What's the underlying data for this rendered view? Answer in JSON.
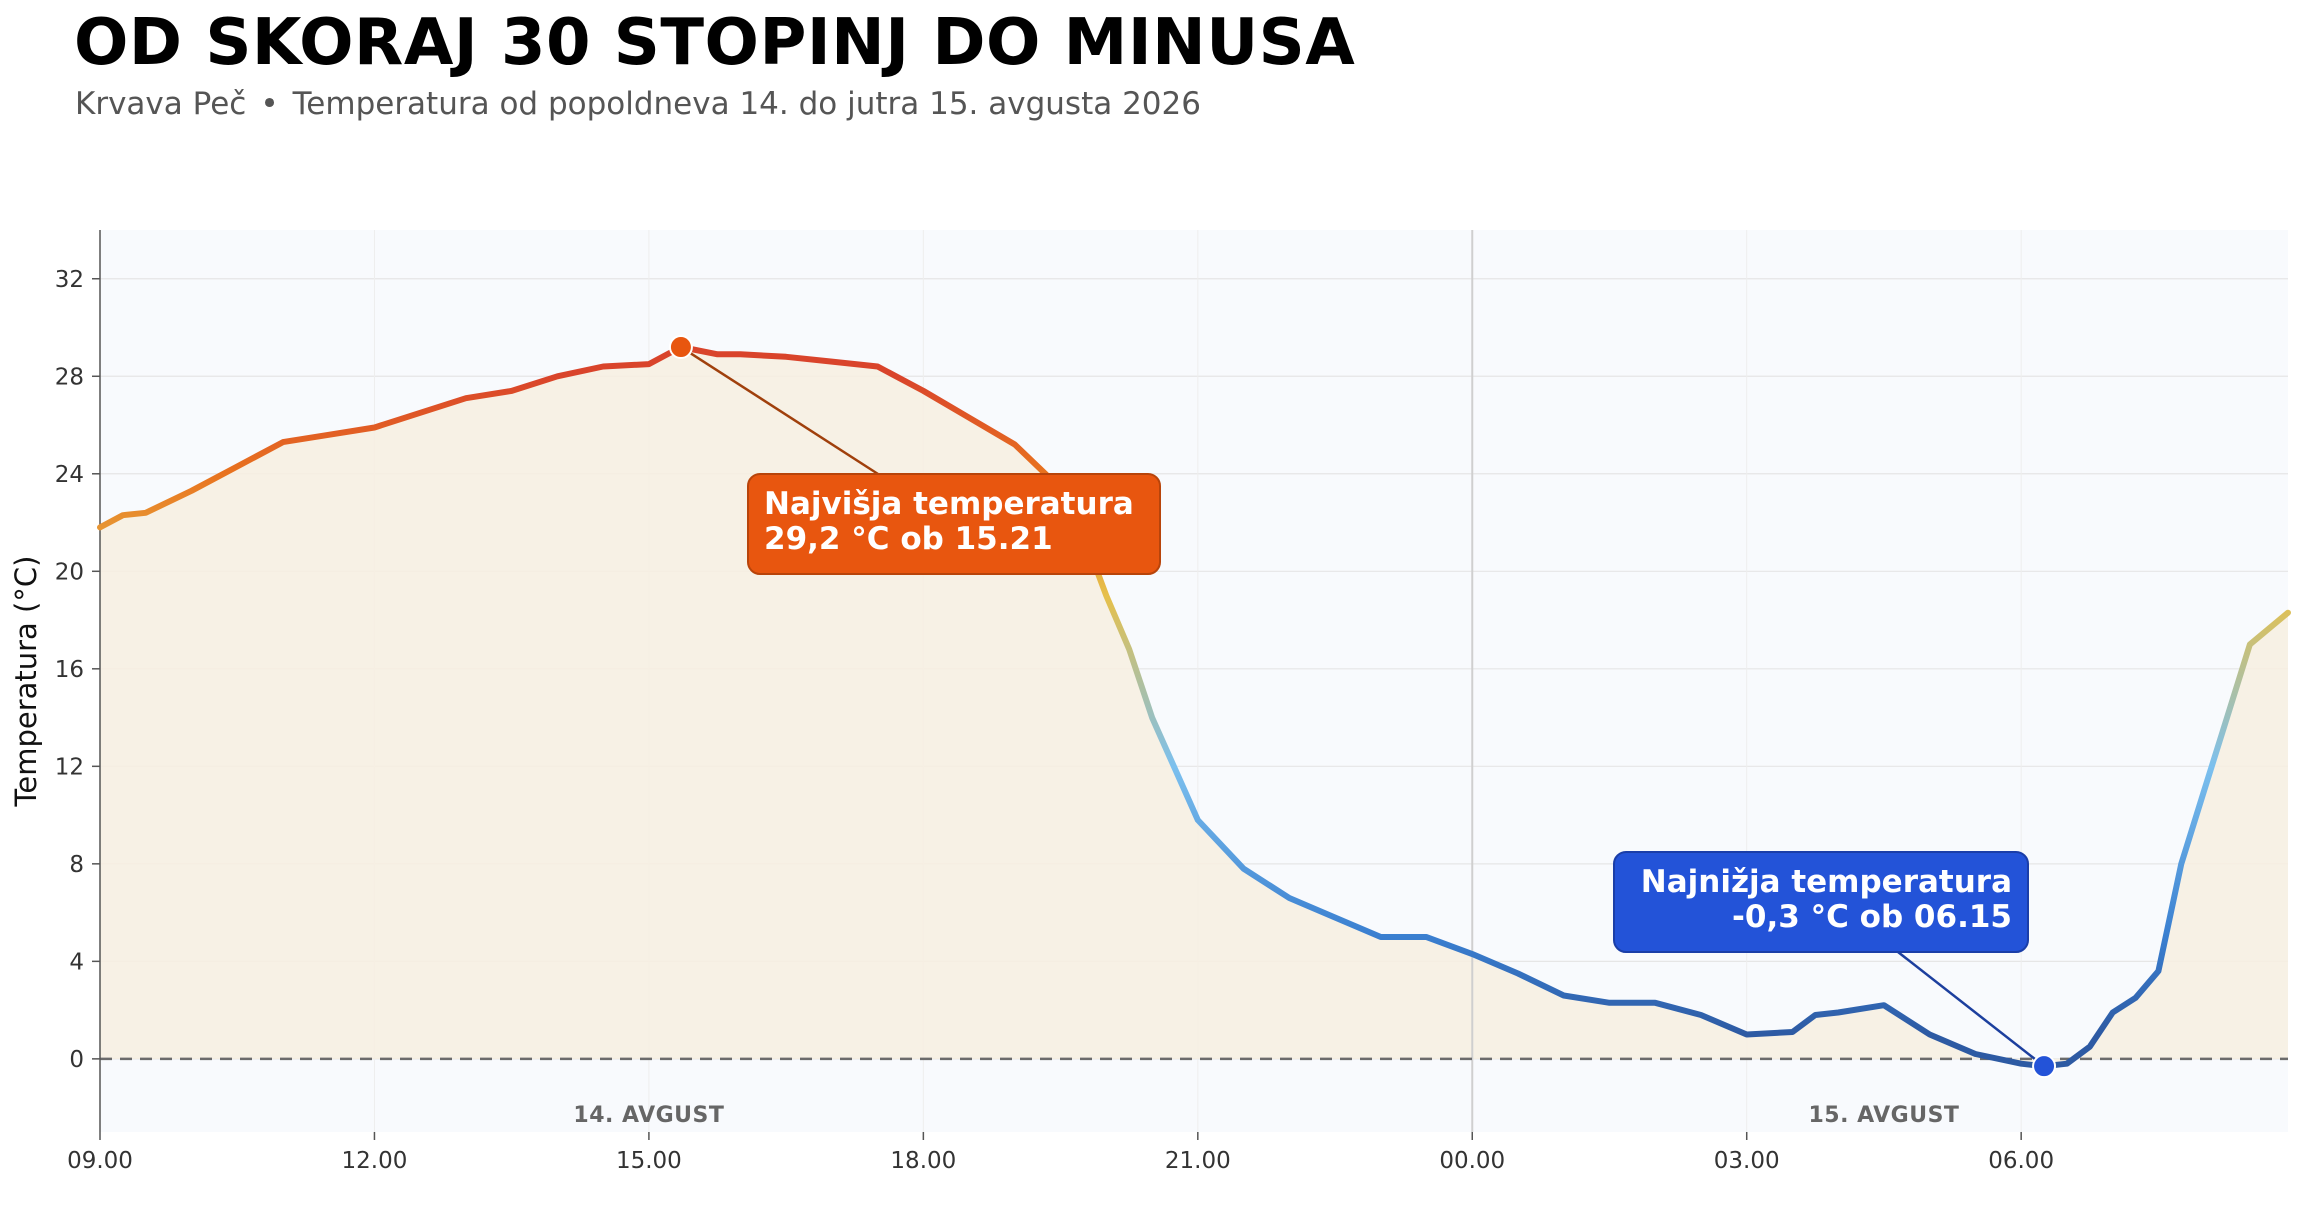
{
  "header": {
    "title": "OD SKORAJ 30 STOPINJ DO MINUSA",
    "location": "Krvava Peč",
    "separator": "•",
    "description": "Temperatura od popoldneva 14. do jutra 15. avgusta 2026"
  },
  "chart_data": {
    "type": "line",
    "title": "OD SKORAJ 30 STOPINJ DO MINUSA",
    "xlabel": "",
    "ylabel": "Temperatura (°C)",
    "x_unit": "time of day (14.–15. avgust 2026)",
    "ylim": [
      -3,
      34
    ],
    "xlim": [
      "09.00",
      "08.55"
    ],
    "y_ticks": [
      0,
      4,
      8,
      12,
      16,
      20,
      24,
      28,
      32
    ],
    "x_ticks": [
      "09.00",
      "12.00",
      "15.00",
      "18.00",
      "21.00",
      "00.00",
      "03.00",
      "06.00"
    ],
    "grid": true,
    "reference_line": {
      "y": 0,
      "style": "dashed"
    },
    "day_separator": {
      "x": "00.00"
    },
    "day_labels": [
      {
        "text": "14. AVGUST",
        "x": "15.00"
      },
      {
        "text": "15. AVGUST",
        "x": "04.30"
      }
    ],
    "colors": {
      "warm": "#d9442b",
      "orange": "#e8731f",
      "yellow": "#e6c04b",
      "light_blue": "#7cc0ee",
      "blue": "#3a7fd0",
      "dark_blue": "#2d5aa3"
    },
    "series": [
      {
        "x": [
          "09.00",
          "09.15",
          "09.30",
          "10.00",
          "10.30",
          "11.00",
          "11.30",
          "12.00",
          "12.30",
          "13.00",
          "13.30",
          "14.00",
          "14.30",
          "15.00",
          "15.21",
          "15.45",
          "16.00",
          "16.30",
          "17.00",
          "17.30",
          "18.00",
          "18.30",
          "19.00",
          "19.30",
          "19.45",
          "20.00",
          "20.15",
          "20.30",
          "21.00",
          "21.30",
          "22.00",
          "22.30",
          "23.00",
          "23.30",
          "00.00",
          "00.30",
          "01.00",
          "01.30",
          "02.00",
          "02.30",
          "03.00",
          "03.30",
          "03.45",
          "04.00",
          "04.30",
          "05.00",
          "05.30",
          "06.00",
          "06.15",
          "06.30",
          "06.45",
          "07.00",
          "07.15",
          "07.30",
          "07.45",
          "08.00",
          "08.15",
          "08.30",
          "08.55"
        ],
        "values": [
          21.8,
          22.3,
          22.4,
          23.3,
          24.3,
          25.3,
          25.6,
          25.9,
          26.5,
          27.1,
          27.4,
          28.0,
          28.4,
          28.5,
          29.2,
          28.9,
          28.9,
          28.8,
          28.6,
          28.4,
          27.4,
          26.3,
          25.2,
          23.4,
          21.5,
          19.0,
          16.8,
          14.0,
          9.8,
          7.8,
          6.6,
          5.8,
          5.0,
          5.0,
          4.3,
          3.5,
          2.6,
          2.3,
          2.3,
          1.8,
          1.0,
          1.1,
          1.8,
          1.9,
          2.2,
          1.0,
          0.2,
          -0.2,
          -0.3,
          -0.2,
          0.5,
          1.9,
          2.5,
          3.6,
          8.0,
          11.0,
          14.0,
          17.0,
          18.3
        ]
      }
    ],
    "annotations": [
      {
        "label": "Najvišja temperatura",
        "text": "29,2 °C ob 15.21",
        "x": "15.21",
        "y": 29.2,
        "color": "#e8560f"
      },
      {
        "label": "Najnižja temperatura",
        "text": "-0,3 °C ob 06.15",
        "x": "06.15",
        "y": -0.3,
        "color": "#2353d8"
      }
    ]
  }
}
